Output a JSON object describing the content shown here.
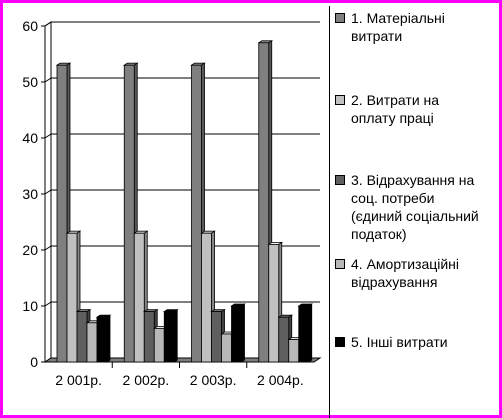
{
  "chart_data": {
    "type": "bar",
    "categories": [
      "2 001р.",
      "2 002р.",
      "2 003р.",
      "2 004р."
    ],
    "series": [
      {
        "name": "1. Матеріальні витрати",
        "legend_lines": [
          "1. Матеріальні",
          "витрати"
        ],
        "values": [
          53,
          53,
          53,
          57
        ],
        "color": "#7f7f7f"
      },
      {
        "name": "2. Витрати на оплату праці",
        "legend_lines": [
          "2. Витрати на",
          "оплату праці"
        ],
        "values": [
          23,
          23,
          23,
          21
        ],
        "color": "#c0c0c0"
      },
      {
        "name": "3. Відрахування на соц. потреби (єдиний соціальний податок)",
        "legend_lines": [
          "3. Відрахування на",
          "соц. потреби",
          "(єдиний соціальний",
          "податок)"
        ],
        "values": [
          9,
          9,
          9,
          8
        ],
        "color": "#5f5f5f"
      },
      {
        "name": "4. Амортизаційні відрахування",
        "legend_lines": [
          "4. Амортизаційні",
          "відрахування"
        ],
        "values": [
          7,
          6,
          5,
          4
        ],
        "color": "#b8b8b8"
      },
      {
        "name": "5. Інші витрати",
        "legend_lines": [
          "5. Інші витрати"
        ],
        "values": [
          8,
          9,
          10,
          10
        ],
        "color": "#000000"
      }
    ],
    "yticks": [
      "0",
      "10",
      "20",
      "30",
      "40",
      "50",
      "60"
    ],
    "ylim": [
      0,
      60
    ],
    "grid": true,
    "legend_position": "right",
    "title": "",
    "xlabel": "",
    "ylabel": ""
  }
}
